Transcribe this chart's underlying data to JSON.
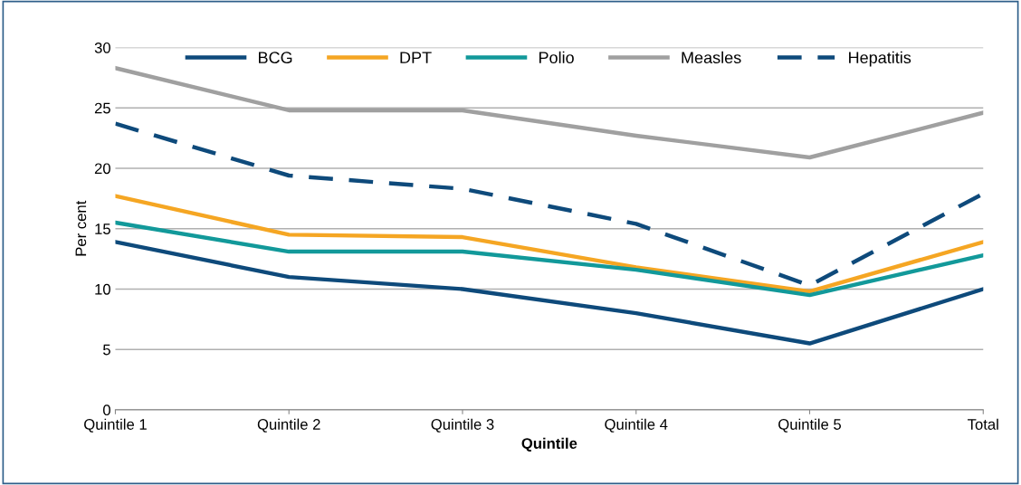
{
  "chart_data": {
    "type": "line",
    "xlabel": "Quintile",
    "ylabel": "Per cent",
    "categories": [
      "Quintile 1",
      "Quintile 2",
      "Quintile 3",
      "Quintile 4",
      "Quintile 5",
      "Total"
    ],
    "series": [
      {
        "name": "BCG",
        "color": "#0e4a7b",
        "line_style": "solid",
        "values": [
          13.9,
          11.0,
          10.0,
          8.0,
          5.5,
          10.0
        ]
      },
      {
        "name": "DPT",
        "color": "#f5a623",
        "line_style": "solid",
        "values": [
          17.7,
          14.5,
          14.3,
          11.8,
          9.8,
          13.9
        ]
      },
      {
        "name": "Polio",
        "color": "#12999a",
        "line_style": "solid",
        "values": [
          15.5,
          13.1,
          13.1,
          11.6,
          9.5,
          12.8
        ]
      },
      {
        "name": "Measles",
        "color": "#a0a0a0",
        "line_style": "solid",
        "values": [
          28.3,
          24.8,
          24.8,
          22.7,
          20.9,
          24.6
        ]
      },
      {
        "name": "Hepatitis",
        "color": "#0e4a7b",
        "line_style": "dashed",
        "values": [
          23.7,
          19.4,
          18.3,
          15.4,
          10.3,
          17.9
        ]
      }
    ],
    "ylim": [
      0,
      30
    ],
    "yticks": [
      0,
      5,
      10,
      15,
      20,
      25,
      30
    ],
    "grid": "y",
    "legend": "top",
    "marker": "none"
  }
}
